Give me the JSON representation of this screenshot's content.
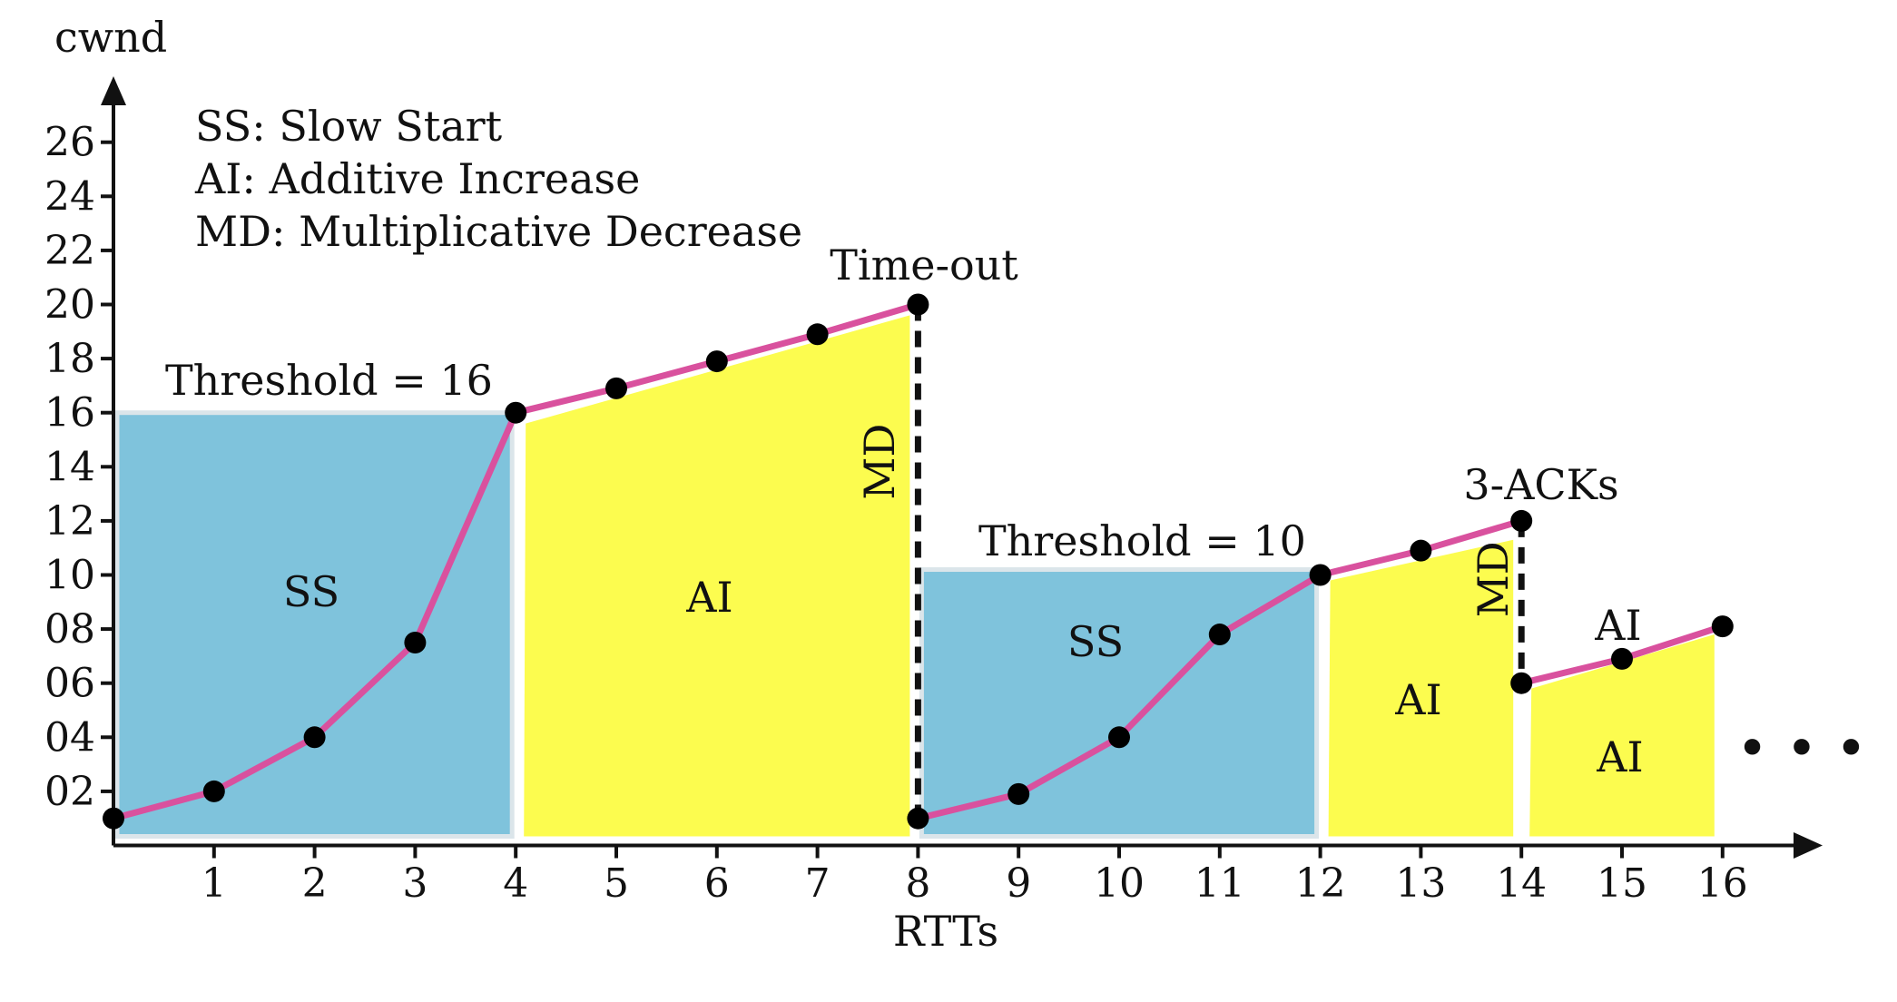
{
  "chart_data": {
    "type": "line",
    "ylabel": "cwnd",
    "xlabel": "RTTs",
    "x_ticks": [
      "1",
      "2",
      "3",
      "4",
      "5",
      "6",
      "7",
      "8",
      "9",
      "10",
      "11",
      "12",
      "13",
      "14",
      "15",
      "16"
    ],
    "y_ticks": [
      "02",
      "04",
      "06",
      "08",
      "10",
      "12",
      "14",
      "16",
      "18",
      "20",
      "22",
      "24",
      "26"
    ],
    "xlim": [
      0,
      17
    ],
    "ylim": [
      0,
      28
    ],
    "series": [
      {
        "color": "#d9519e",
        "points": [
          [
            0,
            1
          ],
          [
            1,
            2
          ],
          [
            2,
            4
          ],
          [
            3,
            7.5
          ],
          [
            4,
            16
          ],
          [
            5,
            16.9
          ],
          [
            6,
            17.9
          ],
          [
            7,
            18.9
          ],
          [
            8,
            20
          ],
          [
            8,
            1
          ],
          [
            9,
            1.9
          ],
          [
            10,
            4
          ],
          [
            11,
            7.8
          ],
          [
            12,
            10
          ],
          [
            13,
            10.9
          ],
          [
            14,
            12
          ],
          [
            14,
            6
          ],
          [
            15,
            6.9
          ],
          [
            16,
            8.1
          ]
        ]
      }
    ],
    "drops": [
      {
        "x": 8,
        "from": 20,
        "to": 1,
        "label": "MD"
      },
      {
        "x": 14,
        "from": 12,
        "to": 6,
        "label": "MD"
      }
    ],
    "regions": [
      {
        "kind": "threshold",
        "x0": 0,
        "x1": 4,
        "top": 16,
        "label": "SS",
        "color": "#7fc3dc"
      },
      {
        "kind": "slope",
        "x0": 4,
        "x1": 8,
        "y0": 15.6,
        "y1": 19.6,
        "label": "AI",
        "color": "#fcfc4f"
      },
      {
        "kind": "threshold",
        "x0": 8,
        "x1": 12,
        "top": 10.2,
        "label": "SS",
        "color": "#7fc3dc"
      },
      {
        "kind": "slope",
        "x0": 12,
        "x1": 14,
        "y0": 9.8,
        "y1": 11.3,
        "label": "AI",
        "color": "#fcfc4f"
      },
      {
        "kind": "slope",
        "x0": 14,
        "x1": 16,
        "y0": 5.8,
        "y1": 7.8,
        "label": "AI",
        "color": "#fcfc4f"
      }
    ],
    "annotations": {
      "threshold_1": "Threshold = 16",
      "threshold_2": "Threshold = 10",
      "timeout": "Time-out",
      "three_acks": "3-ACKs",
      "ai_label_extra": "AI",
      "ellipsis": "• • •"
    },
    "legend": [
      "SS: Slow Start",
      "AI: Additive Increase",
      "MD: Multiplicative Decrease"
    ],
    "legend_position": "top-left",
    "grid": false
  }
}
